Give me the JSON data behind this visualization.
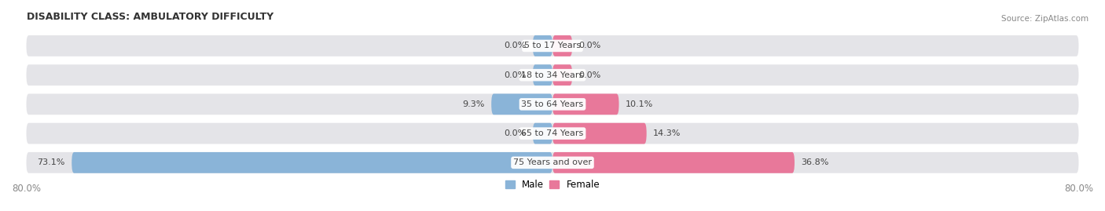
{
  "title": "DISABILITY CLASS: AMBULATORY DIFFICULTY",
  "source": "Source: ZipAtlas.com",
  "categories": [
    "5 to 17 Years",
    "18 to 34 Years",
    "35 to 64 Years",
    "65 to 74 Years",
    "75 Years and over"
  ],
  "male_values": [
    0.0,
    0.0,
    9.3,
    0.0,
    73.1
  ],
  "female_values": [
    0.0,
    0.0,
    10.1,
    14.3,
    36.8
  ],
  "x_min": -80.0,
  "x_max": 80.0,
  "male_color_bar": "#8ab4d8",
  "female_color_bar": "#e8789a",
  "bg_row_color": "#e4e4e8",
  "center_label_color": "#444444",
  "axis_label_color": "#888888",
  "value_label_color": "#444444",
  "title_color": "#333333",
  "male_label": "Male",
  "female_label": "Female",
  "x_tick_left": "80.0%",
  "x_tick_right": "80.0%"
}
